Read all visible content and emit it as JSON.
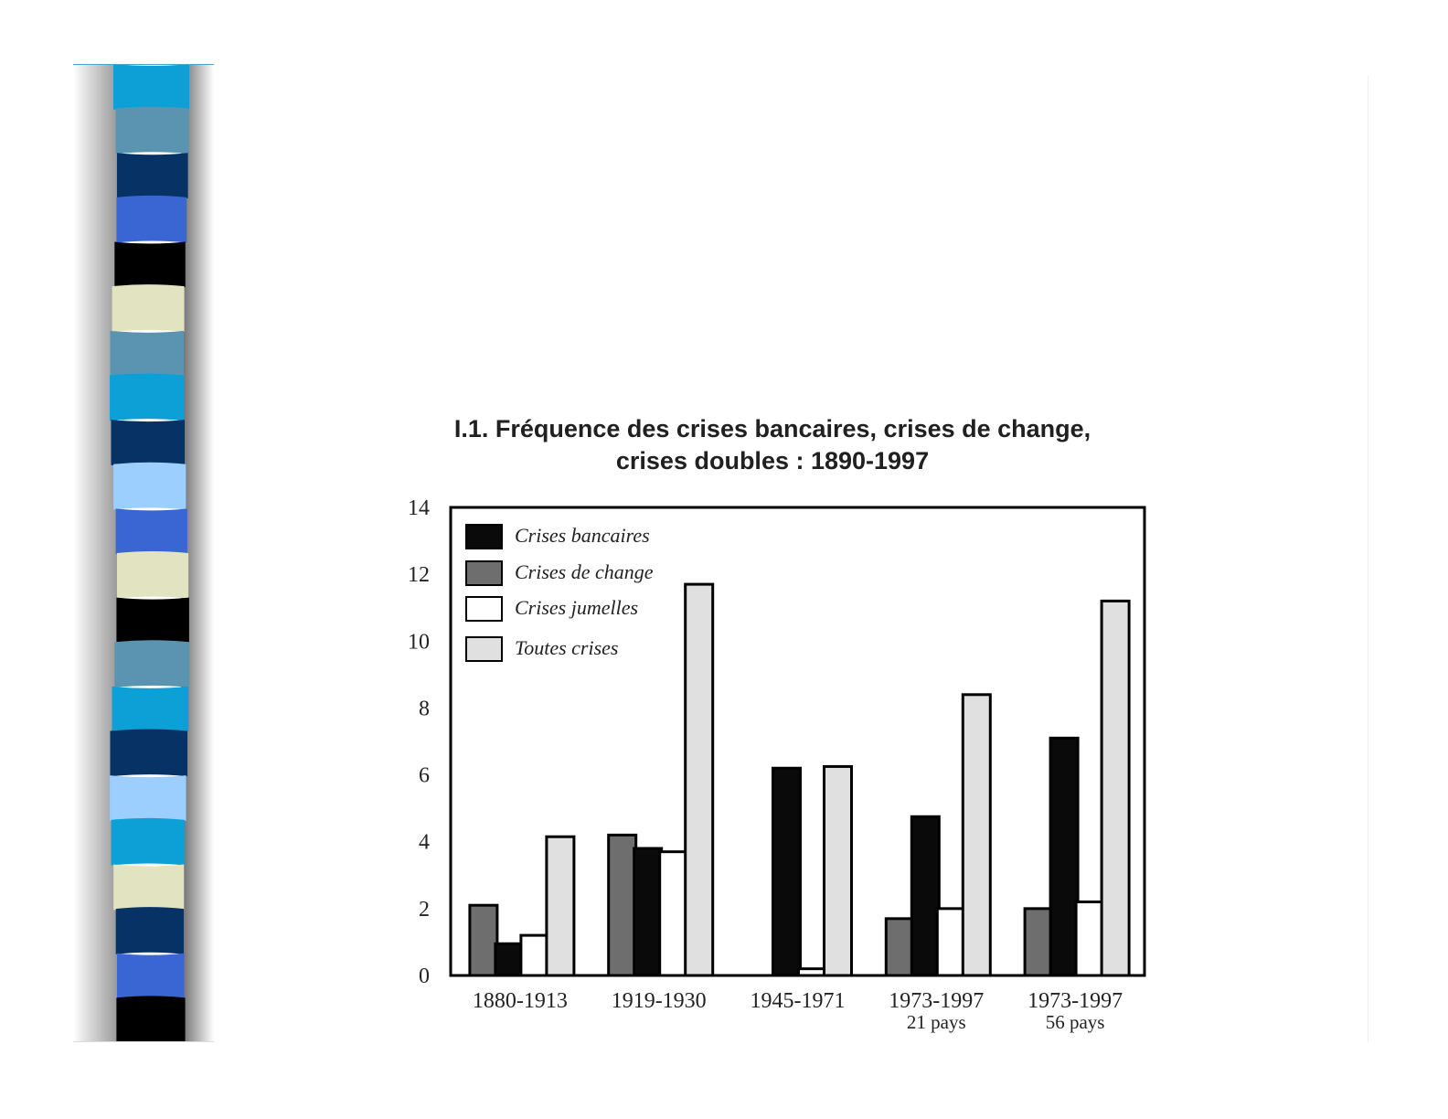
{
  "decoration": {
    "stripe_colors": [
      "#0ca0d6",
      "#5a94b0",
      "#063266",
      "#3a66d4",
      "#000000",
      "#e2e4c1",
      "#5a94b0",
      "#0ca0d6",
      "#063266",
      "#9ccffd",
      "#3a66d4",
      "#e2e4c1",
      "#000000",
      "#5a94b0",
      "#0ca0d6",
      "#063266",
      "#9ccffd",
      "#0ca0d6",
      "#e2e4c1",
      "#063266",
      "#3a66d4",
      "#000000"
    ]
  },
  "chart_data": {
    "type": "bar",
    "title_lines": [
      "I.1. Fréquence des crises bancaires, crises de change,",
      "crises doubles : 1890-1997"
    ],
    "categories": [
      "1880-1913",
      "1919-1930",
      "1945-1971",
      "1973-1997",
      "1973-1997"
    ],
    "category_sublabels": [
      "",
      "",
      "",
      "21 pays",
      "56 pays"
    ],
    "ylim": [
      0,
      14
    ],
    "yticks": [
      "0",
      "2",
      "4",
      "6",
      "8",
      "10",
      "12",
      "14"
    ],
    "legend_position": "top-left",
    "series": [
      {
        "name": "Crises de change",
        "color": "#6e6e6e",
        "values": [
          2.1,
          4.2,
          0,
          1.7,
          2.0
        ]
      },
      {
        "name": "Crises bancaires",
        "color": "#0a0a0a",
        "values": [
          0.95,
          3.8,
          6.2,
          4.75,
          7.1
        ]
      },
      {
        "name": "Crises jumelles",
        "color": "#ffffff",
        "values": [
          1.2,
          3.7,
          0.2,
          2.0,
          2.2
        ]
      },
      {
        "name": "Toutes crises",
        "color": "#e0e0e0",
        "values": [
          4.15,
          11.7,
          6.25,
          8.4,
          11.2
        ]
      }
    ],
    "legend_order": [
      "Crises bancaires",
      "Crises de change",
      "Crises jumelles",
      "Toutes crises"
    ]
  }
}
